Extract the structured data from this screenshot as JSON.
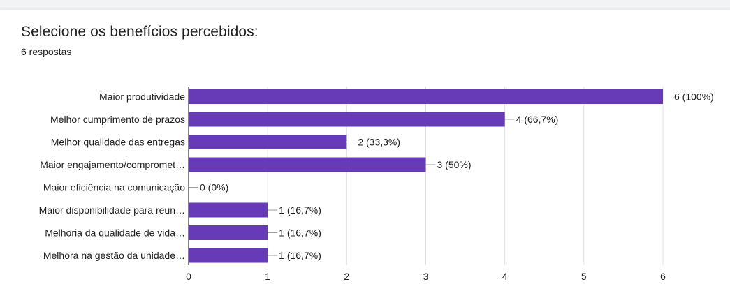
{
  "header": {
    "title": "Selecione os benefícios percebidos:",
    "subtitle": "6 respostas"
  },
  "chart_data": {
    "type": "bar",
    "orientation": "horizontal",
    "title": "Selecione os benefícios percebidos:",
    "categories": [
      "Maior produtividade",
      "Melhor cumprimento de prazos",
      "Melhor qualidade das entregas",
      "Maior engajamento/compromet…",
      "Maior eficiência na comunicação",
      "Maior disponibilidade para reun…",
      "Melhoria da qualidade de vida…",
      "Melhora na gestão da unidade…"
    ],
    "values": [
      6,
      4,
      2,
      3,
      0,
      1,
      1,
      1
    ],
    "value_labels": [
      "6 (100%)",
      "4 (66,7%)",
      "2 (33,3%)",
      "3 (50%)",
      "0 (0%)",
      "1 (16,7%)",
      "1 (16,7%)",
      "1 (16,7%)"
    ],
    "xlim": [
      0,
      6
    ],
    "x_ticks": [
      0,
      1,
      2,
      3,
      4,
      5,
      6
    ],
    "grid": true,
    "colors": {
      "bar": "#673ab7",
      "grid": "#e0e0e0",
      "axis": "#333333",
      "text": "#202124",
      "leader": "#9e9e9e"
    }
  }
}
